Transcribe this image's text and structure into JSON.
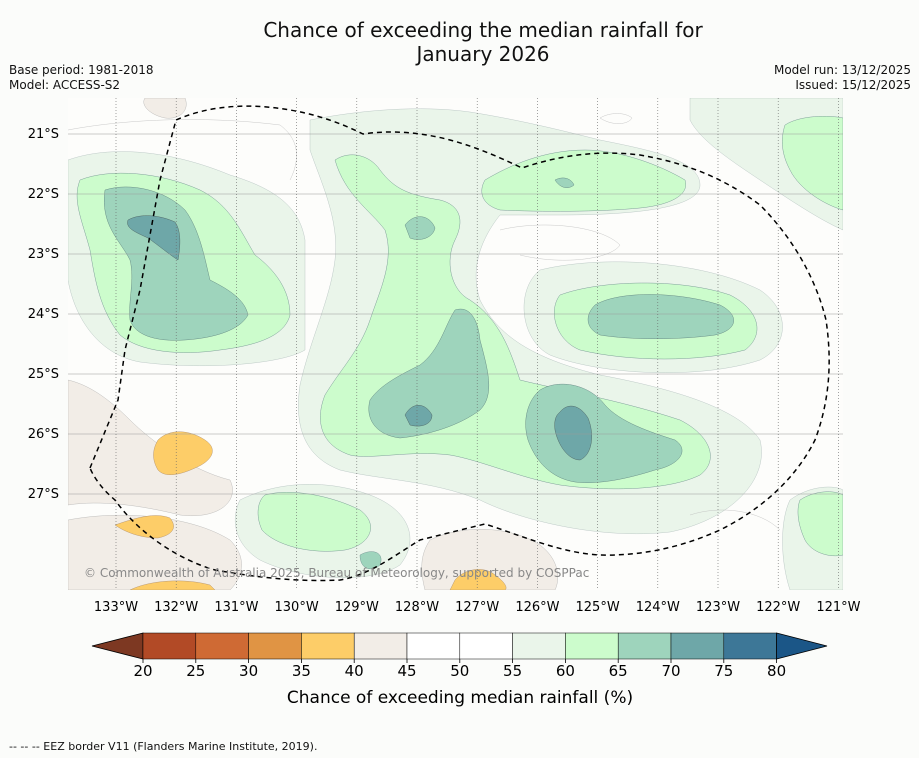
{
  "title_line1": "Chance of exceeding the median rainfall for",
  "title_line2": "January 2026",
  "meta_left": [
    "Base period: 1981-2018",
    "Model: ACCESS-S2"
  ],
  "meta_right": [
    "Model run: 13/12/2025",
    "Issued: 15/12/2025"
  ],
  "lat_labels": [
    "21°S",
    "22°S",
    "23°S",
    "24°S",
    "25°S",
    "26°S",
    "27°S"
  ],
  "lon_labels": [
    "133°W",
    "132°W",
    "131°W",
    "130°W",
    "129°W",
    "128°W",
    "127°W",
    "126°W",
    "125°W",
    "124°W",
    "123°W",
    "122°W",
    "121°W"
  ],
  "copyright": "© Commonwealth of Australia 2025, Bureau of Meteorology, supported by COSPPac",
  "colorbar": {
    "ticks": [
      "20",
      "25",
      "30",
      "35",
      "40",
      "45",
      "50",
      "55",
      "60",
      "65",
      "70",
      "75",
      "80"
    ],
    "colors": [
      "#b24a26",
      "#cf6a34",
      "#e09444",
      "#fdcd68",
      "#f2ede7",
      "#ffffff",
      "#ffffff",
      "#eaf5ea",
      "#ccfccc",
      "#9ed4bc",
      "#6ea7a8",
      "#3d7797"
    ],
    "under_color": "#7d3822",
    "over_color": "#1b5687",
    "label": "Chance of exceeding median rainfall (%)"
  },
  "legend_note": "--  --  -- EEZ border V11 (Flanders Marine Institute, 2019)."
}
